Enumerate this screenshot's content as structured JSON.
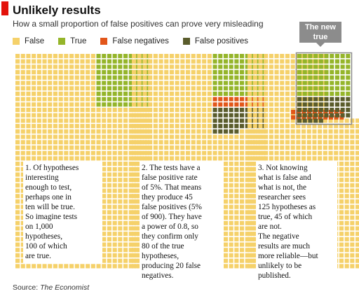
{
  "header": {
    "title": "Unlikely results",
    "subtitle": "How a small proportion of false positives can prove very misleading"
  },
  "legend": [
    {
      "label": "False",
      "color": "#f5d16a"
    },
    {
      "label": "True",
      "color": "#95b52a"
    },
    {
      "label": "False negatives",
      "color": "#e2561a"
    },
    {
      "label": "False positives",
      "color": "#5a5c2c"
    }
  ],
  "callout": {
    "label": "The new\ntrue"
  },
  "panels": [
    {
      "caption": "1. Of hypotheses\ninteresting\nenough to test,\nperhaps one in\nten will be true.\nSo imagine tests\non 1,000\nhypotheses,\n100 of which\nare true."
    },
    {
      "caption": "2. The tests have a\nfalse positive rate\nof 5%. That means\nthey produce 45\nfalse positives (5%\nof 900). They have\na power of 0.8, so\nthey confirm only\n80 of the true\nhypotheses,\nproducing 20 false\nnegatives."
    },
    {
      "caption": "3. Not knowing\nwhat is false and\nwhat is not, the\nresearcher sees\n125 hypotheses as\ntrue, 45 of which\nare not.\nThe negative\nresults are much\nmore reliable—but\nunlikely to be\npublished."
    }
  ],
  "source": {
    "prefix": "Source: ",
    "name": "The Economist"
  },
  "chart_data": {
    "type": "waffle",
    "units_per_panel": 1000,
    "series": [
      {
        "name": "False",
        "values": [
          900,
          855,
          855
        ]
      },
      {
        "name": "True",
        "values": [
          100,
          80,
          80
        ]
      },
      {
        "name": "False negatives",
        "values": [
          0,
          20,
          20
        ]
      },
      {
        "name": "False positives",
        "values": [
          0,
          45,
          45
        ]
      }
    ]
  }
}
